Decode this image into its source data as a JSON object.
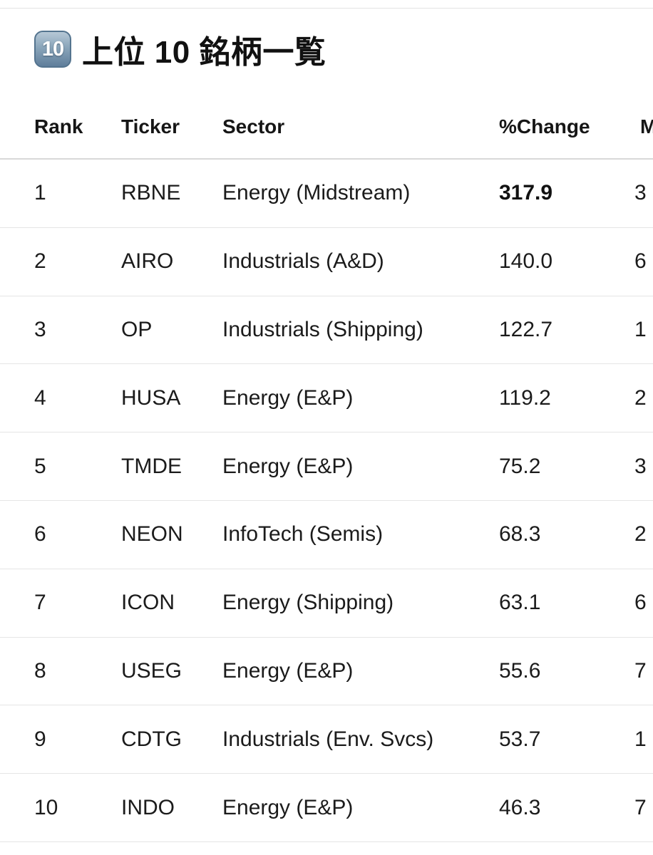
{
  "title": {
    "emoji_label": "10",
    "text": "上位 10 銘柄一覧"
  },
  "table": {
    "headers": {
      "rank": "Rank",
      "ticker": "Ticker",
      "sector": "Sector",
      "change": "%Change",
      "mktcap_partial": "M"
    },
    "rows": [
      {
        "rank": "1",
        "ticker": "RBNE",
        "sector": "Energy (Midstream)",
        "change": "317.9",
        "change_bold": true,
        "mkt_partial": "3"
      },
      {
        "rank": "2",
        "ticker": "AIRO",
        "sector": "Industrials (A&D)",
        "change": "140.0",
        "change_bold": false,
        "mkt_partial": "6"
      },
      {
        "rank": "3",
        "ticker": "OP",
        "sector": "Industrials (Shipping)",
        "change": "122.7",
        "change_bold": false,
        "mkt_partial": "1"
      },
      {
        "rank": "4",
        "ticker": "HUSA",
        "sector": "Energy (E&P)",
        "change": "119.2",
        "change_bold": false,
        "mkt_partial": "2"
      },
      {
        "rank": "5",
        "ticker": "TMDE",
        "sector": "Energy (E&P)",
        "change": "75.2",
        "change_bold": false,
        "mkt_partial": "3"
      },
      {
        "rank": "6",
        "ticker": "NEON",
        "sector": "InfoTech (Semis)",
        "change": "68.3",
        "change_bold": false,
        "mkt_partial": "2"
      },
      {
        "rank": "7",
        "ticker": "ICON",
        "sector": "Energy (Shipping)",
        "change": "63.1",
        "change_bold": false,
        "mkt_partial": "6"
      },
      {
        "rank": "8",
        "ticker": "USEG",
        "sector": "Energy (E&P)",
        "change": "55.6",
        "change_bold": false,
        "mkt_partial": "7"
      },
      {
        "rank": "9",
        "ticker": "CDTG",
        "sector": "Industrials (Env. Svcs)",
        "change": "53.7",
        "change_bold": false,
        "mkt_partial": "1"
      },
      {
        "rank": "10",
        "ticker": "INDO",
        "sector": "Energy (E&P)",
        "change": "46.3",
        "change_bold": false,
        "mkt_partial": "7"
      }
    ]
  },
  "colors": {
    "text": "#1a1a1a",
    "row_divider": "#e5e5e5",
    "header_border": "#d8d8d8",
    "top_hairline": "#e3e3e3",
    "keycap_top": "#b6c8d6",
    "keycap_bottom": "#5f7e9b"
  }
}
